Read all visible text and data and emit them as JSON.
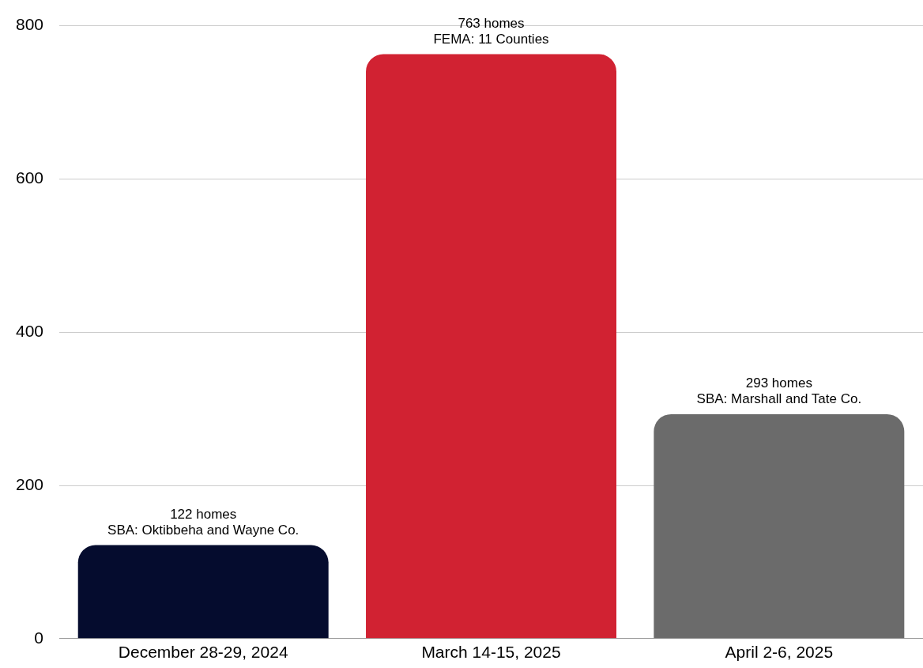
{
  "chart_data": {
    "type": "bar",
    "categories": [
      "December 28-29, 2024",
      "March 14-15, 2025",
      "April 2-6, 2025"
    ],
    "values": [
      122,
      763,
      293
    ],
    "colors": [
      "#050c2e",
      "#d12232",
      "#6b6b6b"
    ],
    "value_labels": [
      "122 homes",
      "763 homes",
      "293 homes"
    ],
    "annotations": [
      {
        "text": "SBA: Oktibbeha and Wayne Co.",
        "x": "December 28-29, 2024",
        "y": 122
      },
      {
        "text": "FEMA: 11 Counties",
        "x": "March 14-15, 2025",
        "y": 763
      },
      {
        "text": "SBA: Marshall and Tate Co.",
        "x": "April 2-6, 2025",
        "y": 293
      }
    ],
    "ylim": [
      0,
      800
    ],
    "yticks": [
      0,
      200,
      400,
      600,
      800
    ],
    "grid": "y",
    "legend": false
  }
}
